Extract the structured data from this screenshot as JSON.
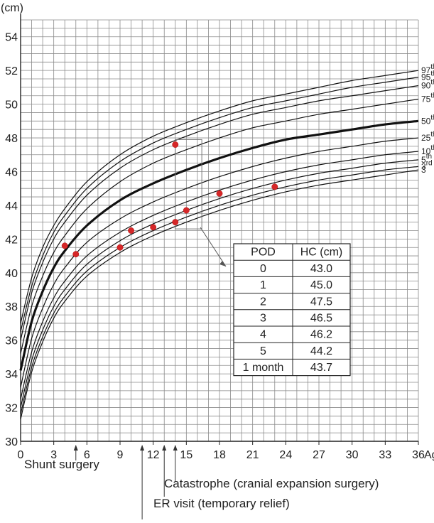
{
  "chart_data": {
    "type": "line",
    "ylabel": "(cm)",
    "xlabel": "Age",
    "xlim": [
      0,
      36
    ],
    "ylim": [
      30,
      55
    ],
    "x_ticks": [
      "0",
      "3",
      "6",
      "9",
      "12",
      "15",
      "18",
      "21",
      "24",
      "27",
      "30",
      "33",
      "36"
    ],
    "y_ticks": [
      "30",
      "32",
      "34",
      "36",
      "38",
      "40",
      "42",
      "44",
      "46",
      "48",
      "50",
      "52",
      "54"
    ],
    "grid": true,
    "percentile_ages": [
      0,
      1,
      2,
      3,
      4,
      6,
      9,
      12,
      15,
      18,
      21,
      24,
      27,
      30,
      33,
      36
    ],
    "percentiles": [
      {
        "label": "97",
        "suffix": "th",
        "bold": false,
        "values": [
          37.0,
          39.7,
          41.5,
          42.8,
          43.8,
          45.4,
          47.0,
          48.1,
          48.9,
          49.6,
          50.2,
          50.6,
          51.0,
          51.4,
          51.7,
          52.0
        ]
      },
      {
        "label": "95",
        "suffix": "th",
        "bold": false,
        "values": [
          36.5,
          39.2,
          41.0,
          42.4,
          43.4,
          45.0,
          46.6,
          47.7,
          48.5,
          49.2,
          49.8,
          50.2,
          50.6,
          51.0,
          51.3,
          51.6
        ]
      },
      {
        "label": "90",
        "suffix": "th",
        "bold": false,
        "values": [
          36.0,
          38.8,
          40.6,
          42.0,
          43.0,
          44.6,
          46.2,
          47.3,
          48.1,
          48.8,
          49.4,
          49.8,
          50.2,
          50.5,
          50.8,
          51.1
        ]
      },
      {
        "label": "75",
        "suffix": "th",
        "bold": false,
        "values": [
          35.2,
          38.0,
          39.8,
          41.2,
          42.2,
          43.8,
          45.4,
          46.5,
          47.3,
          48.0,
          48.6,
          49.0,
          49.4,
          49.7,
          50.0,
          50.3
        ]
      },
      {
        "label": "50",
        "suffix": "th",
        "bold": true,
        "values": [
          34.2,
          37.1,
          38.9,
          40.3,
          41.3,
          42.8,
          44.3,
          45.3,
          46.1,
          46.8,
          47.4,
          47.9,
          48.2,
          48.5,
          48.8,
          49.0
        ]
      },
      {
        "label": "25",
        "suffix": "th",
        "bold": false,
        "values": [
          33.2,
          36.1,
          37.9,
          39.3,
          40.3,
          41.8,
          43.2,
          44.2,
          45.0,
          45.7,
          46.3,
          46.8,
          47.2,
          47.5,
          47.8,
          48.0
        ]
      },
      {
        "label": "10",
        "suffix": "th",
        "bold": false,
        "values": [
          32.5,
          35.3,
          37.1,
          38.5,
          39.5,
          41.0,
          42.4,
          43.4,
          44.2,
          44.9,
          45.5,
          46.0,
          46.4,
          46.7,
          47.0,
          47.2
        ]
      },
      {
        "label": "5",
        "suffix": "th",
        "bold": false,
        "values": [
          32.0,
          34.8,
          36.6,
          38.0,
          39.0,
          40.5,
          41.9,
          42.9,
          43.7,
          44.4,
          45.0,
          45.5,
          45.9,
          46.2,
          46.5,
          46.7
        ]
      },
      {
        "label": "3",
        "suffix": "rd",
        "bold": false,
        "values": [
          31.6,
          34.4,
          36.2,
          37.6,
          38.6,
          40.1,
          41.5,
          42.5,
          43.3,
          44.0,
          44.6,
          45.1,
          45.5,
          45.8,
          46.1,
          46.3
        ]
      },
      {
        "label": "3",
        "suffix": "",
        "bold": false,
        "values": [
          31.3,
          34.1,
          35.9,
          37.3,
          38.3,
          39.8,
          41.2,
          42.2,
          43.0,
          43.7,
          44.3,
          44.8,
          45.2,
          45.5,
          45.8,
          46.1
        ]
      }
    ],
    "measurements": [
      {
        "x": 4,
        "y": 41.6
      },
      {
        "x": 5,
        "y": 41.1
      },
      {
        "x": 9,
        "y": 41.5
      },
      {
        "x": 10,
        "y": 42.5
      },
      {
        "x": 12,
        "y": 42.7
      },
      {
        "x": 14,
        "y": 43.0
      },
      {
        "x": 14,
        "y": 47.6
      },
      {
        "x": 15,
        "y": 43.7
      },
      {
        "x": 18,
        "y": 44.7
      },
      {
        "x": 23,
        "y": 45.1
      }
    ],
    "highlight_box": {
      "x": [
        14,
        16.4
      ],
      "y": [
        42.6,
        47.9
      ]
    },
    "annotations": [
      {
        "text": "Shunt surgery",
        "x": 5
      },
      {
        "text": "Catastrophe (cranial expansion surgery)",
        "x": 14
      },
      {
        "text": "ER visit (temporary relief)",
        "x": 13
      },
      {
        "text": "",
        "x": 11
      }
    ],
    "table": {
      "headers": [
        "POD",
        "HC (cm)"
      ],
      "rows": [
        [
          "0",
          "43.0"
        ],
        [
          "1",
          "45.0"
        ],
        [
          "2",
          "47.5"
        ],
        [
          "3",
          "46.5"
        ],
        [
          "4",
          "46.2"
        ],
        [
          "5",
          "44.2"
        ],
        [
          "1 month",
          "43.7"
        ]
      ]
    }
  }
}
